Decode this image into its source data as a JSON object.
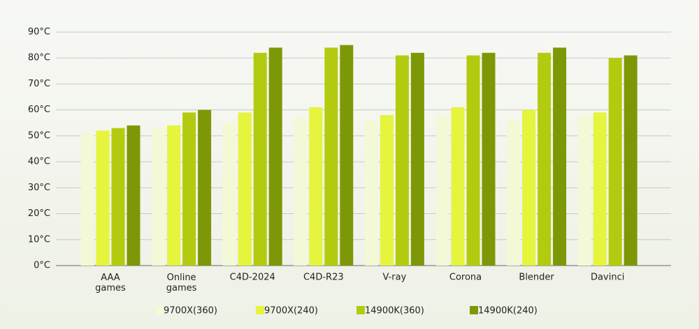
{
  "chart_data": {
    "type": "bar",
    "categories": [
      "AAA games",
      "Online games",
      "C4D-2024",
      "C4D-R23",
      "V-ray",
      "Corona",
      "Blender",
      "Davinci"
    ],
    "series": [
      {
        "name": "9700X(360)",
        "color": "#f3f8d6",
        "values": [
          51,
          53,
          55,
          57,
          56,
          58,
          56,
          58
        ]
      },
      {
        "name": "9700X(240)",
        "color": "#e5f43c",
        "values": [
          52,
          54,
          59,
          61,
          58,
          61,
          60,
          59
        ]
      },
      {
        "name": "14900K(360)",
        "color": "#b3cb0f",
        "values": [
          53,
          59,
          82,
          84,
          81,
          81,
          82,
          80
        ]
      },
      {
        "name": "14900K(240)",
        "color": "#7d9806",
        "values": [
          54,
          60,
          84,
          85,
          82,
          82,
          84,
          81
        ]
      }
    ],
    "ylim": [
      0,
      90
    ],
    "yticks": [
      {
        "value": 0,
        "label": "0°C"
      },
      {
        "value": 10,
        "label": "10°C"
      },
      {
        "value": 20,
        "label": "20°C"
      },
      {
        "value": 30,
        "label": "30°C"
      },
      {
        "value": 40,
        "label": "40°C"
      },
      {
        "value": 50,
        "label": "50°C"
      },
      {
        "value": 60,
        "label": "60°C"
      },
      {
        "value": 70,
        "label": "70°C"
      },
      {
        "value": 80,
        "label": "80°C"
      },
      {
        "value": 90,
        "label": "90°C"
      }
    ],
    "grid": true
  }
}
